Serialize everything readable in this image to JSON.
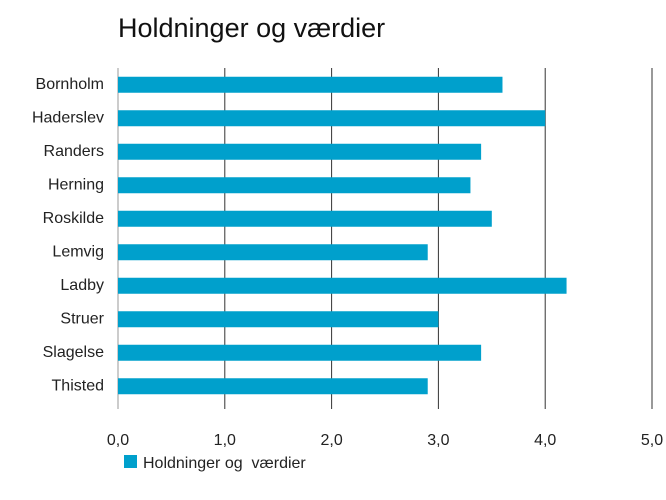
{
  "chart_data": {
    "type": "bar",
    "orientation": "horizontal",
    "title": "Holdninger og værdier",
    "categories": [
      "Bornholm",
      "Haderslev",
      "Randers",
      "Herning",
      "Roskilde",
      "Lemvig",
      "Ladby",
      "Struer",
      "Slagelse",
      "Thisted"
    ],
    "series": [
      {
        "name": "Holdninger og  værdier",
        "color": "#00a0cc",
        "values": [
          3.6,
          4.0,
          3.4,
          3.3,
          3.5,
          2.9,
          4.2,
          3.0,
          3.4,
          2.9
        ]
      }
    ],
    "xlim": [
      0,
      5
    ],
    "xticks": [
      {
        "value": 0,
        "label": "0,0"
      },
      {
        "value": 1,
        "label": "1,0"
      },
      {
        "value": 2,
        "label": "2,0"
      },
      {
        "value": 3,
        "label": "3,0"
      },
      {
        "value": 4,
        "label": "4,0"
      },
      {
        "value": 5,
        "label": "5,0"
      }
    ],
    "grid": true,
    "legend": "bottom"
  }
}
